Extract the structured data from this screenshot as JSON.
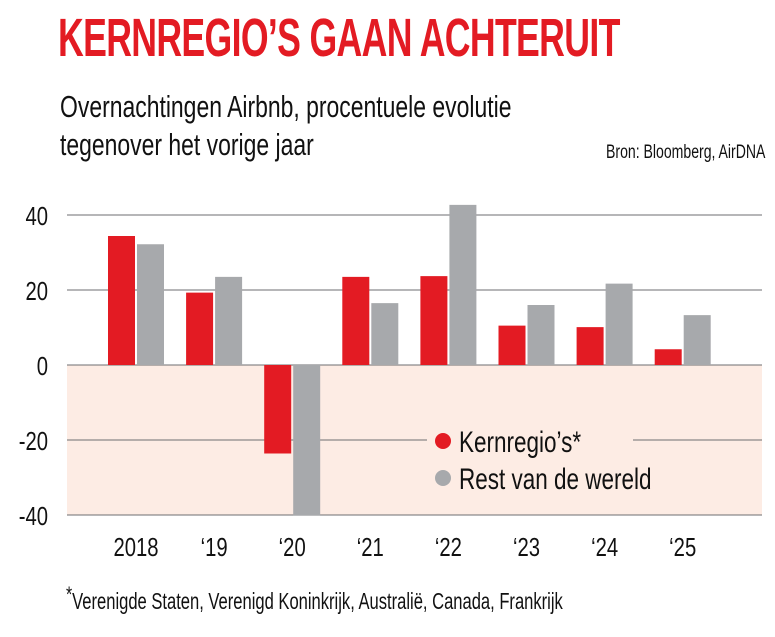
{
  "header": {
    "title": "KERNREGIO’S GAAN ACHTERUIT",
    "subtitle_line1": "Overnachtingen Airbnb, procentuele evolutie",
    "subtitle_line2": "tegenover het vorige jaar",
    "source": "Bron: Bloomberg, AirDNA"
  },
  "footnote": {
    "marker": "*",
    "text": "Verenigde Staten, Verenigd Koninkrijk, Australië, Canada, Frankrijk"
  },
  "colors": {
    "title": "#e31b23",
    "kernregios": "#e31b23",
    "rest": "#a7a9ac",
    "negative_band": "#fdece4",
    "grid": "#6d6e71"
  },
  "chart_data": {
    "type": "bar",
    "title": "KERNREGIO’S GAAN ACHTERUIT",
    "subtitle": "Overnachtingen Airbnb, procentuele evolutie tegenover het vorige jaar",
    "xlabel": "",
    "ylabel": "",
    "categories": [
      "2018",
      "‘19",
      "‘20",
      "‘21",
      "‘22",
      "‘23",
      "‘24",
      "‘25"
    ],
    "series": [
      {
        "name": "Kernregio’s*",
        "color": "#e31b23",
        "values": [
          34.4,
          19.3,
          -23.6,
          23.5,
          23.7,
          10.5,
          10.1,
          4.2
        ]
      },
      {
        "name": "Rest van de wereld",
        "color": "#a7a9ac",
        "values": [
          32.2,
          23.5,
          -40.2,
          16.5,
          42.7,
          16.0,
          21.7,
          13.3
        ]
      }
    ],
    "ylim": [
      -40,
      40
    ],
    "yticks": [
      40,
      20,
      0,
      -20,
      -40
    ],
    "ytick_labels": [
      "40",
      "20",
      "0",
      "-20",
      "-40"
    ],
    "grid": true,
    "legend_position": "bottom-right",
    "shaded_region": "below zero"
  }
}
